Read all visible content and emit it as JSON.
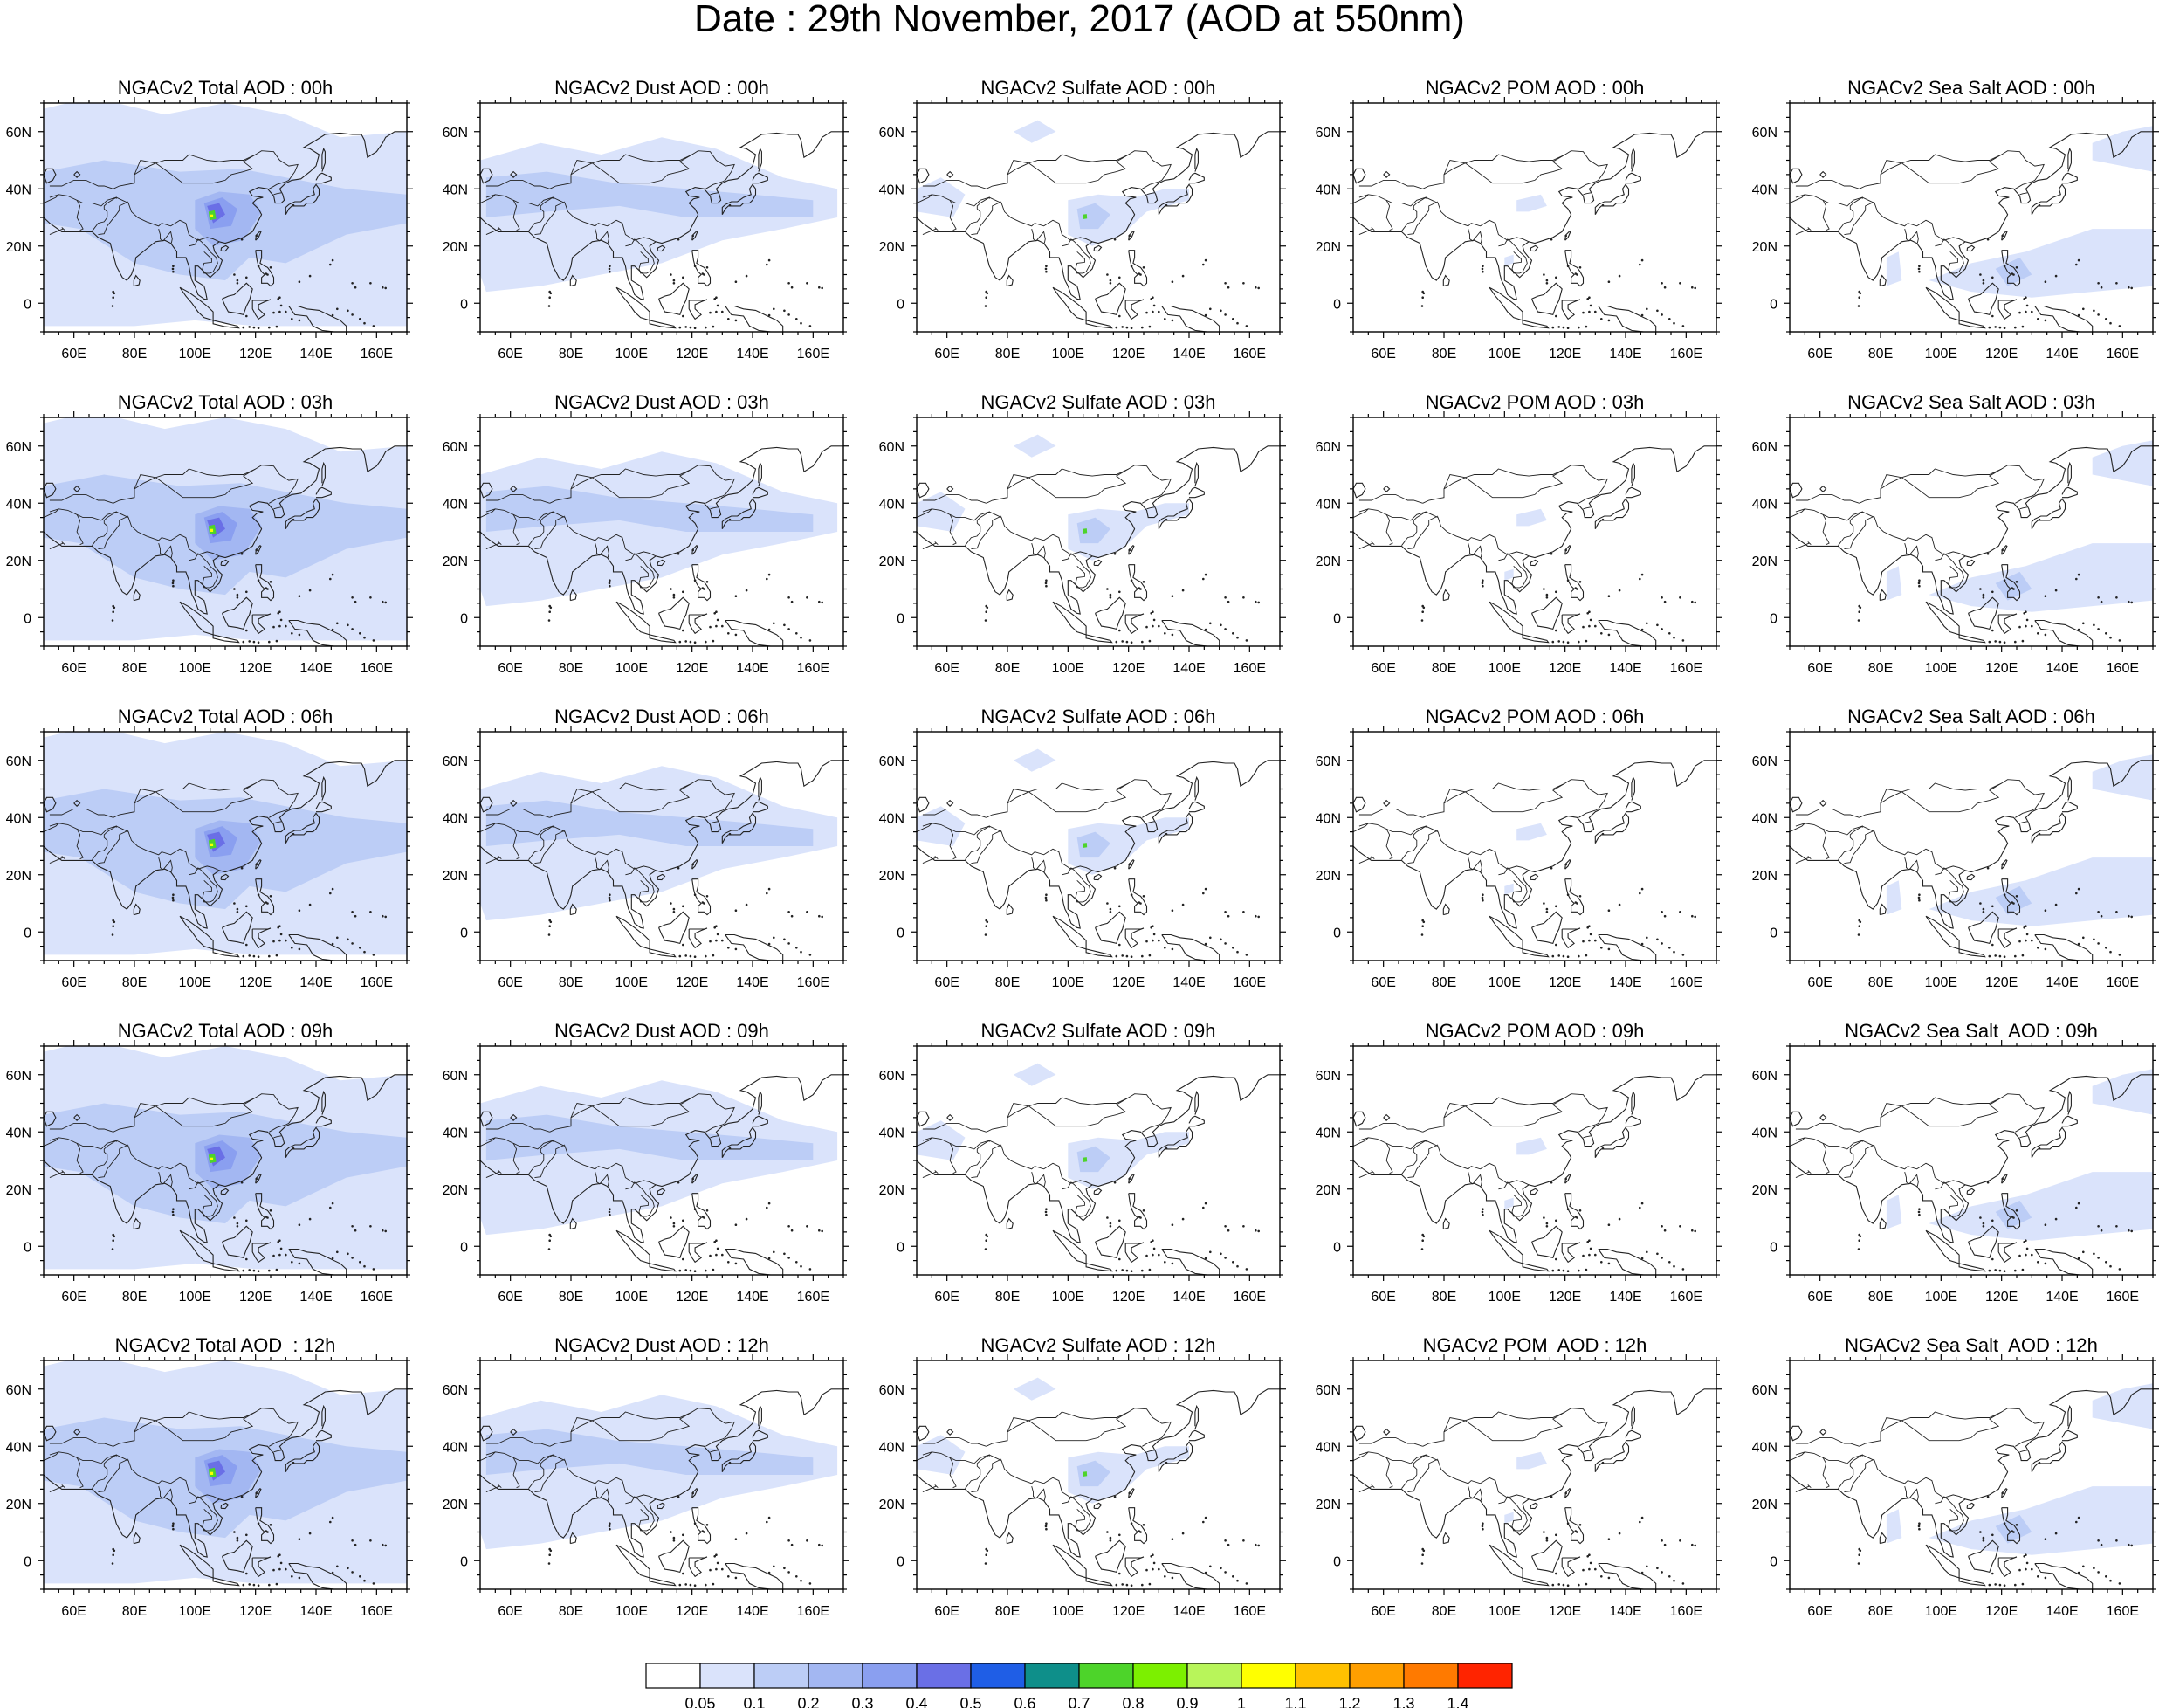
{
  "title": "Date : 29th November, 2017 (AOD at 550nm)",
  "x_ticks": [
    "60E",
    "80E",
    "100E",
    "120E",
    "140E",
    "160E"
  ],
  "y_ticks": [
    "60N",
    "40N",
    "20N",
    "0"
  ],
  "panels": [
    {
      "title": "NGACv2 Total AOD : 00h",
      "species": "total"
    },
    {
      "title": "NGACv2 Dust AOD : 00h",
      "species": "dust"
    },
    {
      "title": "NGACv2 Sulfate AOD : 00h",
      "species": "sulfate"
    },
    {
      "title": "NGACv2 POM AOD : 00h",
      "species": "pom"
    },
    {
      "title": "NGACv2 Sea Salt AOD : 00h",
      "species": "seasalt"
    },
    {
      "title": "NGACv2 Total AOD : 03h",
      "species": "total"
    },
    {
      "title": "NGACv2 Dust AOD : 03h",
      "species": "dust"
    },
    {
      "title": "NGACv2 Sulfate AOD : 03h",
      "species": "sulfate"
    },
    {
      "title": "NGACv2 POM AOD : 03h",
      "species": "pom"
    },
    {
      "title": "NGACv2 Sea Salt AOD : 03h",
      "species": "seasalt"
    },
    {
      "title": "NGACv2 Total AOD : 06h",
      "species": "total"
    },
    {
      "title": "NGACv2 Dust AOD : 06h",
      "species": "dust"
    },
    {
      "title": "NGACv2 Sulfate AOD : 06h",
      "species": "sulfate"
    },
    {
      "title": "NGACv2 POM AOD : 06h",
      "species": "pom"
    },
    {
      "title": "NGACv2 Sea Salt AOD : 06h",
      "species": "seasalt"
    },
    {
      "title": "NGACv2 Total AOD : 09h",
      "species": "total"
    },
    {
      "title": "NGACv2 Dust AOD : 09h",
      "species": "dust"
    },
    {
      "title": "NGACv2 Sulfate AOD : 09h",
      "species": "sulfate"
    },
    {
      "title": "NGACv2 POM AOD : 09h",
      "species": "pom"
    },
    {
      "title": "NGACv2 Sea Salt  AOD : 09h",
      "species": "seasalt"
    },
    {
      "title": "NGACv2 Total AOD  : 12h",
      "species": "total"
    },
    {
      "title": "NGACv2 Dust AOD : 12h",
      "species": "dust"
    },
    {
      "title": "NGACv2 Sulfate AOD : 12h",
      "species": "sulfate"
    },
    {
      "title": "NGACv2 POM  AOD : 12h",
      "species": "pom"
    },
    {
      "title": "NGACv2 Sea Salt  AOD : 12h",
      "species": "seasalt"
    }
  ],
  "colorbar": {
    "labels": [
      "0.05",
      "0.1",
      "0.2",
      "0.3",
      "0.4",
      "0.5",
      "0.6",
      "0.7",
      "0.8",
      "0.9",
      "1",
      "1.1",
      "1.2",
      "1.3",
      "1.4"
    ],
    "colors": [
      "#ffffff",
      "#dae3fb",
      "#bccdf6",
      "#a3b7f2",
      "#8a9ff0",
      "#6a6fe6",
      "#1f5ee6",
      "#0e8f8a",
      "#4dd42a",
      "#7cf000",
      "#b8f55a",
      "#ffff00",
      "#ffc100",
      "#ff9f00",
      "#ff7a00",
      "#ff2400"
    ]
  }
}
